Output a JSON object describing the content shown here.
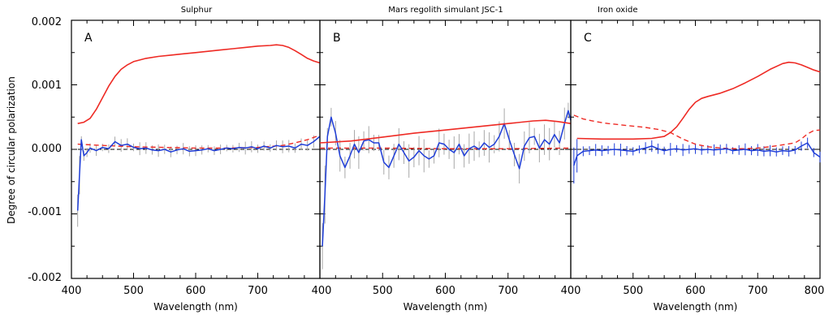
{
  "chart_data": {
    "type": "line",
    "ylabel": "Degree of circular polarization",
    "ylim": [
      -0.002,
      0.002
    ],
    "yticks": [
      "0.002",
      "0.001",
      "0.000",
      "-0.001",
      "-0.002"
    ],
    "panels": [
      {
        "letter": "A",
        "title": "Sulphur",
        "xlabel": "Wavelength (nm)",
        "xlim": [
          400,
          800
        ],
        "xticks": [
          "400",
          "500",
          "600",
          "700",
          "800"
        ],
        "red_solid": {
          "x": [
            410,
            420,
            430,
            440,
            450,
            460,
            470,
            480,
            490,
            500,
            520,
            540,
            560,
            580,
            600,
            620,
            640,
            660,
            680,
            700,
            720,
            730,
            740,
            750,
            760,
            770,
            780,
            790,
            800
          ],
          "y": [
            0.0004,
            0.00042,
            0.00048,
            0.00062,
            0.0008,
            0.00098,
            0.00113,
            0.00124,
            0.00131,
            0.00136,
            0.00141,
            0.00144,
            0.00146,
            0.00148,
            0.0015,
            0.00152,
            0.00154,
            0.00156,
            0.00158,
            0.0016,
            0.00161,
            0.00162,
            0.00161,
            0.00158,
            0.00153,
            0.00147,
            0.00141,
            0.00137,
            0.00134
          ]
        },
        "red_dashed": {
          "x": [
            410,
            450,
            500,
            550,
            600,
            650,
            700,
            740,
            760,
            780,
            800
          ],
          "y": [
            8e-05,
            6e-05,
            4e-05,
            3e-05,
            2e-05,
            2e-05,
            3e-05,
            6e-05,
            0.0001,
            0.00015,
            0.00022
          ]
        },
        "blue": {
          "x": [
            410,
            413,
            416,
            420,
            425,
            430,
            440,
            450,
            460,
            470,
            480,
            490,
            500,
            510,
            520,
            530,
            540,
            550,
            560,
            570,
            580,
            590,
            600,
            610,
            620,
            630,
            640,
            650,
            660,
            670,
            680,
            690,
            700,
            710,
            720,
            730,
            740,
            750,
            760,
            770,
            780,
            790,
            800
          ],
          "y": [
            -0.00095,
            -0.0004,
            0.00015,
            -0.0001,
            -5e-05,
            2e-05,
            -2e-05,
            3e-05,
            1e-05,
            0.00012,
            6e-05,
            8e-05,
            3e-05,
            1e-05,
            2e-05,
            -1e-05,
            -2e-05,
            0,
            -4e-05,
            -1e-05,
            1e-05,
            -3e-05,
            -2e-05,
            -1e-05,
            1e-05,
            -2e-05,
            0,
            2e-05,
            1e-05,
            3e-05,
            2e-05,
            4e-05,
            1e-05,
            5e-05,
            2e-05,
            6e-05,
            4e-05,
            5e-05,
            2e-05,
            8e-05,
            6e-05,
            0.00012,
            0.0002
          ]
        }
      },
      {
        "letter": "B",
        "title": "Mars regolith simulant JSC-1",
        "xlabel": "Wavelength (nm)",
        "xlim": [
          400,
          800
        ],
        "xticks": [
          "400",
          "500",
          "600",
          "700",
          "800"
        ],
        "red_solid": {
          "x": [
            400,
            450,
            500,
            550,
            600,
            650,
            700,
            740,
            760,
            780,
            800
          ],
          "y": [
            0.0001,
            0.00013,
            0.00019,
            0.00025,
            0.0003,
            0.00035,
            0.0004,
            0.00044,
            0.00045,
            0.00043,
            0.0004
          ]
        },
        "red_dashed": {
          "x": [
            400,
            500,
            600,
            700,
            800
          ],
          "y": [
            2e-05,
            2e-05,
            1e-05,
            1e-05,
            2e-05
          ]
        },
        "blue": {
          "x": [
            404,
            408,
            412,
            418,
            425,
            432,
            440,
            448,
            455,
            462,
            470,
            478,
            486,
            494,
            502,
            510,
            518,
            526,
            534,
            542,
            550,
            558,
            566,
            574,
            582,
            590,
            598,
            606,
            614,
            622,
            630,
            638,
            646,
            654,
            662,
            670,
            678,
            686,
            694,
            702,
            710,
            718,
            726,
            734,
            742,
            750,
            758,
            766,
            774,
            782,
            790,
            796,
            800
          ],
          "y": [
            -0.0015,
            -0.0007,
            0.0002,
            0.0005,
            0.00025,
            -0.0001,
            -0.00028,
            -0.0001,
            8e-05,
            -5e-05,
            0.00013,
            0.00015,
            0.0001,
            0.0001,
            -0.0002,
            -0.00028,
            -0.0001,
            8e-05,
            -5e-05,
            -0.00018,
            -0.00012,
            -2e-05,
            -0.0001,
            -0.00015,
            -0.0001,
            0.0001,
            8e-05,
            0,
            -5e-05,
            8e-05,
            -0.0001,
            1e-05,
            5e-05,
            0,
            0.0001,
            3e-05,
            8e-05,
            0.0002,
            0.0004,
            0.00015,
            -8e-05,
            -0.0003,
            5e-05,
            0.00018,
            0.0002,
            2e-05,
            0.00015,
            8e-05,
            0.00023,
            0.0001,
            0.0004,
            0.0006,
            0.00045
          ]
        }
      },
      {
        "letter": "C",
        "title": "Iron oxide",
        "xlabel": "Wavelength (nm)",
        "xlim": [
          400,
          800
        ],
        "xticks": [
          "400",
          "500",
          "600",
          "700",
          "800"
        ],
        "red_solid": {
          "x": [
            410,
            450,
            500,
            530,
            550,
            560,
            570,
            580,
            590,
            600,
            610,
            620,
            640,
            660,
            680,
            700,
            720,
            740,
            750,
            760,
            770,
            780,
            790,
            800
          ],
          "y": [
            0.00017,
            0.00016,
            0.00016,
            0.00017,
            0.0002,
            0.00026,
            0.00035,
            0.00048,
            0.00062,
            0.00073,
            0.00079,
            0.00082,
            0.00087,
            0.00094,
            0.00103,
            0.00113,
            0.00124,
            0.00133,
            0.00135,
            0.00134,
            0.00131,
            0.00127,
            0.00123,
            0.0012
          ]
        },
        "red_dashed": {
          "x": [
            405,
            420,
            440,
            460,
            480,
            500,
            520,
            540,
            560,
            580,
            600,
            620,
            640,
            660,
            680,
            700,
            720,
            740,
            760,
            770,
            780,
            790,
            800
          ],
          "y": [
            0.00053,
            0.00047,
            0.00043,
            0.0004,
            0.00038,
            0.00036,
            0.00034,
            0.00031,
            0.00026,
            0.00016,
            8e-05,
            4e-05,
            2e-05,
            1e-05,
            1e-05,
            2e-05,
            4e-05,
            7e-05,
            0.0001,
            0.00016,
            0.00024,
            0.00029,
            0.0003
          ]
        },
        "blue": {
          "x": [
            405,
            410,
            420,
            430,
            440,
            450,
            460,
            470,
            480,
            490,
            500,
            510,
            520,
            530,
            540,
            550,
            560,
            570,
            580,
            590,
            600,
            610,
            620,
            630,
            640,
            650,
            660,
            670,
            680,
            690,
            700,
            710,
            720,
            730,
            740,
            750,
            760,
            770,
            780,
            790,
            800
          ],
          "y": [
            -0.00025,
            -0.0001,
            -3e-05,
            -2e-05,
            -1e-05,
            -2e-05,
            -1e-05,
            0,
            -1e-05,
            -2e-05,
            -3e-05,
            0,
            2e-05,
            5e-05,
            1e-05,
            -2e-05,
            0,
            1e-05,
            -1e-05,
            0,
            1e-05,
            -1e-05,
            0,
            -1e-05,
            0,
            1e-05,
            -2e-05,
            -1e-05,
            0,
            -2e-05,
            -1e-05,
            -3e-05,
            -2e-05,
            -4e-05,
            -2e-05,
            -3e-05,
            -1e-05,
            5e-05,
            0.0001,
            -5e-05,
            -0.00012
          ]
        }
      }
    ]
  },
  "colors": {
    "red": "#ee2a24",
    "blue": "#1f3ed8",
    "error_bar": "#a8a8a8",
    "zero_line": "#000000",
    "axis": "#000000"
  }
}
